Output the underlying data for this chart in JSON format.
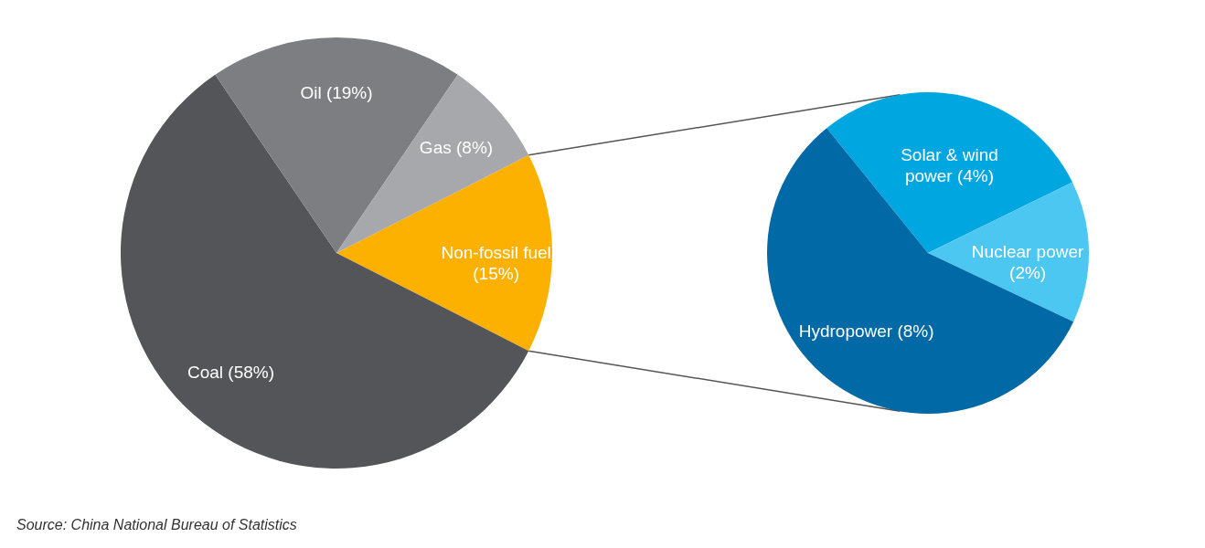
{
  "chart_data": [
    {
      "type": "pie",
      "categories": [
        "Non-fossil fuel",
        "Coal",
        "Oil",
        "Gas"
      ],
      "values": [
        15,
        58,
        19,
        8
      ],
      "value_labels": [
        "(15%)",
        "(58%)",
        "(19%)",
        "(8%)"
      ],
      "colors": [
        "#fcb100",
        "#545559",
        "#7c7e81",
        "#a7a8ab"
      ],
      "annotations": [
        "Source: China National Bureau of Statistics"
      ]
    },
    {
      "type": "pie",
      "categories": [
        "Solar & wind power",
        "Nuclear power",
        "Hydropower"
      ],
      "values": [
        4,
        2,
        8
      ],
      "value_labels": [
        "(4%)",
        "(2%)",
        "(8%)"
      ],
      "colors": [
        "#00a6e0",
        "#4bc7f2",
        "#0069a6"
      ]
    }
  ]
}
